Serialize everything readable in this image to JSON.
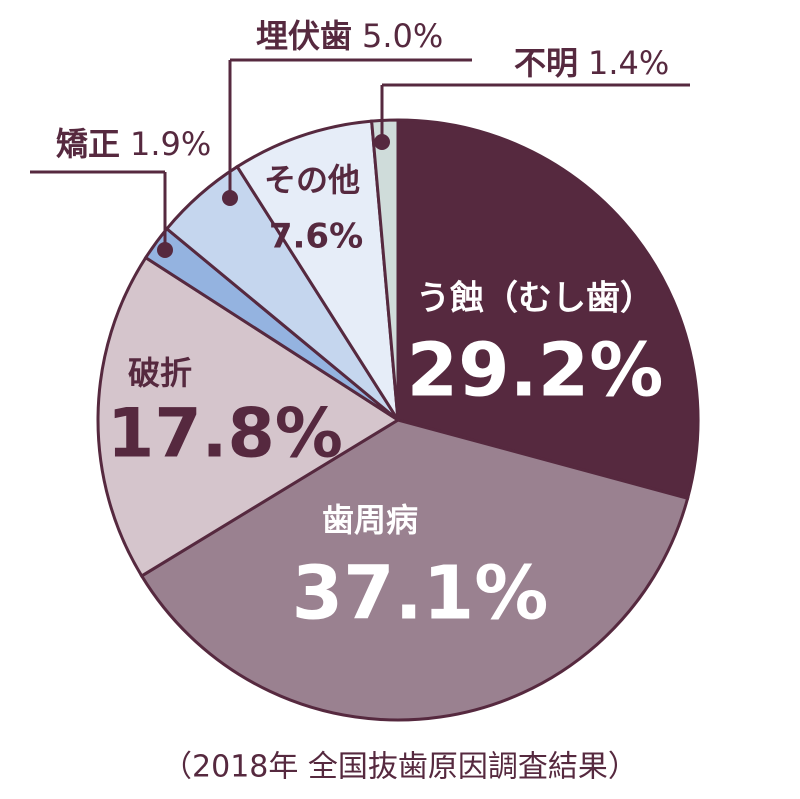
{
  "chart_data": {
    "type": "pie",
    "caption": "（2018年 全国抜歯原因調査結果）",
    "categories": [
      "う蝕（むし歯）",
      "歯周病",
      "破折",
      "矯正",
      "埋伏歯",
      "その他",
      "不明"
    ],
    "values": [
      29.2,
      37.1,
      17.8,
      1.9,
      5.0,
      7.6,
      1.4
    ],
    "value_labels": [
      "29.2%",
      "37.1%",
      "17.8%",
      "1.9%",
      "5.0%",
      "7.6%",
      "1.4%"
    ],
    "colors": [
      "#56293f",
      "#9a8190",
      "#d5c5cc",
      "#94b3e0",
      "#c5d6ee",
      "#e6edf8",
      "#cfdcda"
    ],
    "stroke": "#56293f"
  }
}
